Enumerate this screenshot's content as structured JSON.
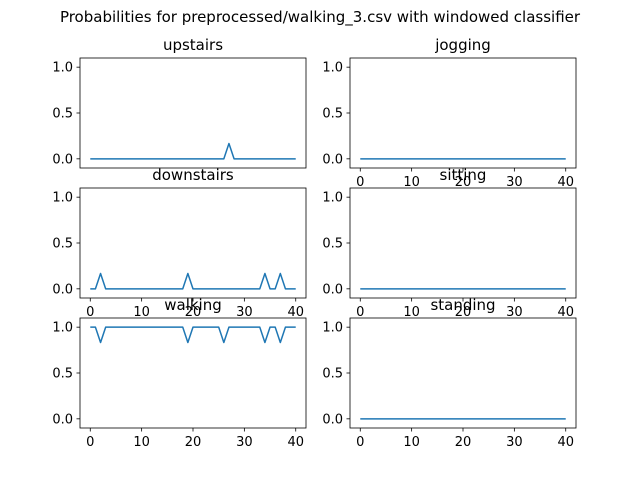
{
  "title": "Probabilities for preprocessed/walking_3.csv with windowed classifier",
  "line_color": "#1f77b4",
  "chart_data": [
    {
      "type": "line",
      "title": "upstairs",
      "xlim": [
        -2,
        42
      ],
      "ylim": [
        -0.1,
        1.1
      ],
      "xticks": [],
      "yticks": [
        0.0,
        0.5,
        1.0
      ],
      "ytick_labels": [
        "0.0",
        "0.5",
        "1.0"
      ],
      "x": [
        0,
        26,
        27,
        28,
        40
      ],
      "y": [
        0,
        0,
        0.167,
        0,
        0
      ]
    },
    {
      "type": "line",
      "title": "jogging",
      "xlim": [
        -2,
        42
      ],
      "ylim": [
        -0.1,
        1.1
      ],
      "xticks": [
        0,
        10,
        20,
        30,
        40
      ],
      "xtick_labels": [
        "0",
        "10",
        "20",
        "30",
        "40"
      ],
      "yticks": [
        0.0,
        0.5,
        1.0
      ],
      "ytick_labels": [
        "0.0",
        "0.5",
        "1.0"
      ],
      "x": [
        0,
        40
      ],
      "y": [
        0,
        0
      ]
    },
    {
      "type": "line",
      "title": "downstairs",
      "xlim": [
        -2,
        42
      ],
      "ylim": [
        -0.1,
        1.1
      ],
      "xticks": [
        0,
        10,
        20,
        30,
        40
      ],
      "xtick_labels": [
        "0",
        "10",
        "20",
        "30",
        "40"
      ],
      "yticks": [
        0.0,
        0.5,
        1.0
      ],
      "ytick_labels": [
        "0.0",
        "0.5",
        "1.0"
      ],
      "x": [
        0,
        1,
        2,
        3,
        18,
        19,
        20,
        33,
        34,
        35,
        36,
        37,
        38,
        40
      ],
      "y": [
        0,
        0,
        0.167,
        0,
        0,
        0.167,
        0,
        0,
        0.167,
        0,
        0,
        0.167,
        0,
        0
      ]
    },
    {
      "type": "line",
      "title": "sitting",
      "xlim": [
        -2,
        42
      ],
      "ylim": [
        -0.1,
        1.1
      ],
      "xticks": [
        0,
        10,
        20,
        30,
        40
      ],
      "xtick_labels": [
        "0",
        "10",
        "20",
        "30",
        "40"
      ],
      "yticks": [
        0.0,
        0.5,
        1.0
      ],
      "ytick_labels": [
        "0.0",
        "0.5",
        "1.0"
      ],
      "x": [
        0,
        40
      ],
      "y": [
        0,
        0
      ]
    },
    {
      "type": "line",
      "title": "walking",
      "xlim": [
        -2,
        42
      ],
      "ylim": [
        -0.1,
        1.1
      ],
      "xticks": [
        0,
        10,
        20,
        30,
        40
      ],
      "xtick_labels": [
        "0",
        "10",
        "20",
        "30",
        "40"
      ],
      "yticks": [
        0.0,
        0.5,
        1.0
      ],
      "ytick_labels": [
        "0.0",
        "0.5",
        "1.0"
      ],
      "x": [
        0,
        1,
        2,
        3,
        18,
        19,
        20,
        25,
        26,
        27,
        33,
        34,
        35,
        36,
        37,
        38,
        40
      ],
      "y": [
        1,
        1,
        0.833,
        1,
        1,
        0.833,
        1,
        1,
        0.833,
        1,
        1,
        0.833,
        1,
        1,
        0.833,
        1,
        1
      ]
    },
    {
      "type": "line",
      "title": "standing",
      "xlim": [
        -2,
        42
      ],
      "ylim": [
        -0.1,
        1.1
      ],
      "xticks": [
        0,
        10,
        20,
        30,
        40
      ],
      "xtick_labels": [
        "0",
        "10",
        "20",
        "30",
        "40"
      ],
      "yticks": [
        0.0,
        0.5,
        1.0
      ],
      "ytick_labels": [
        "0.0",
        "0.5",
        "1.0"
      ],
      "x": [
        0,
        40
      ],
      "y": [
        0,
        0
      ]
    }
  ]
}
